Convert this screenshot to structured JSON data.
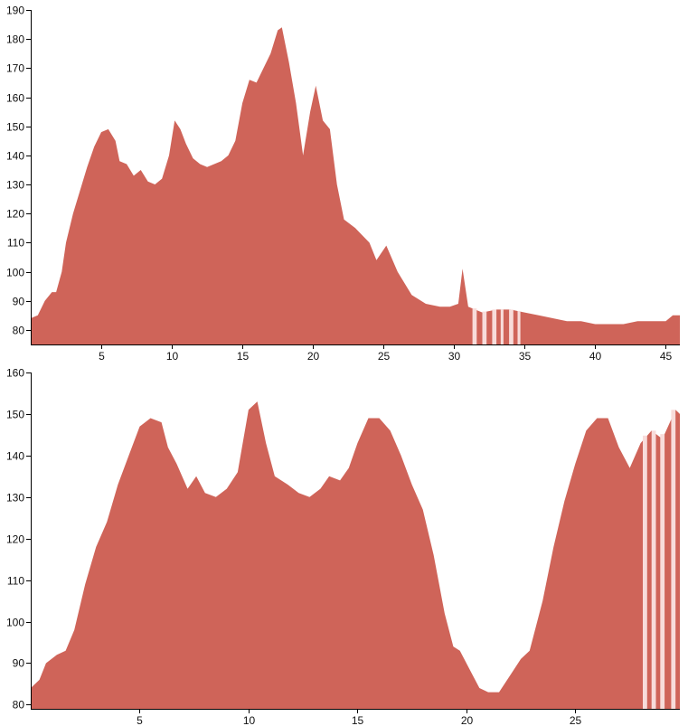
{
  "colors": {
    "area": "#cf6459",
    "gap_stripe": "#f8dcda",
    "axis": "#000000",
    "background": "#ffffff"
  },
  "chart_data": [
    {
      "type": "area",
      "xlim": [
        0,
        46
      ],
      "ylim": [
        75,
        190
      ],
      "x_ticks": [
        5,
        10,
        15,
        20,
        25,
        30,
        35,
        40,
        45
      ],
      "y_ticks": [
        80,
        90,
        100,
        110,
        120,
        130,
        140,
        150,
        160,
        170,
        180,
        190
      ],
      "grid": false,
      "legend": "none",
      "series": [
        {
          "points": [
            [
              0,
              84
            ],
            [
              0.5,
              85
            ],
            [
              1,
              90
            ],
            [
              1.5,
              93
            ],
            [
              1.8,
              93
            ],
            [
              2.2,
              100
            ],
            [
              2.5,
              110
            ],
            [
              3,
              120
            ],
            [
              3.5,
              128
            ],
            [
              4,
              136
            ],
            [
              4.5,
              143
            ],
            [
              5,
              148
            ],
            [
              5.5,
              149
            ],
            [
              6,
              145
            ],
            [
              6.3,
              138
            ],
            [
              6.8,
              137
            ],
            [
              7.3,
              133
            ],
            [
              7.8,
              135
            ],
            [
              8.3,
              131
            ],
            [
              8.8,
              130
            ],
            [
              9.3,
              132
            ],
            [
              9.8,
              140
            ],
            [
              10.2,
              152
            ],
            [
              10.6,
              149
            ],
            [
              11,
              144
            ],
            [
              11.5,
              139
            ],
            [
              12,
              137
            ],
            [
              12.5,
              136
            ],
            [
              13,
              137
            ],
            [
              13.5,
              138
            ],
            [
              14,
              140
            ],
            [
              14.5,
              145
            ],
            [
              15,
              158
            ],
            [
              15.5,
              166
            ],
            [
              16,
              165
            ],
            [
              16.5,
              170
            ],
            [
              17,
              175
            ],
            [
              17.5,
              183
            ],
            [
              17.8,
              184
            ],
            [
              18.3,
              172
            ],
            [
              18.8,
              158
            ],
            [
              19.3,
              140
            ],
            [
              19.8,
              155
            ],
            [
              20.2,
              164
            ],
            [
              20.7,
              152
            ],
            [
              21.2,
              149
            ],
            [
              21.7,
              130
            ],
            [
              22.2,
              118
            ],
            [
              23,
              115
            ],
            [
              24,
              110
            ],
            [
              24.5,
              104
            ],
            [
              25.2,
              109
            ],
            [
              26,
              100
            ],
            [
              27,
              92
            ],
            [
              28,
              89
            ],
            [
              29,
              88
            ],
            [
              29.7,
              88
            ],
            [
              30.3,
              89
            ],
            [
              30.6,
              101
            ],
            [
              31,
              88
            ],
            [
              32,
              86
            ],
            [
              33,
              87
            ],
            [
              34,
              87
            ],
            [
              35,
              86
            ],
            [
              36,
              85
            ],
            [
              37,
              84
            ],
            [
              38,
              83
            ],
            [
              39,
              83
            ],
            [
              40,
              82
            ],
            [
              41,
              82
            ],
            [
              42,
              82
            ],
            [
              43,
              83
            ],
            [
              44,
              83
            ],
            [
              45,
              83
            ],
            [
              45.5,
              85
            ],
            [
              46,
              85
            ]
          ],
          "gaps": [
            [
              31.3,
              31.6
            ],
            [
              32.0,
              32.3
            ],
            [
              32.7,
              33.0
            ],
            [
              33.3,
              33.5
            ],
            [
              33.9,
              34.2
            ],
            [
              34.5,
              34.7
            ]
          ]
        }
      ]
    },
    {
      "type": "area",
      "xlim": [
        0,
        29.8
      ],
      "ylim": [
        79,
        160
      ],
      "x_ticks": [
        5,
        10,
        15,
        20,
        25
      ],
      "y_ticks": [
        80,
        90,
        100,
        110,
        120,
        130,
        140,
        150,
        160
      ],
      "grid": false,
      "legend": "none",
      "series": [
        {
          "points": [
            [
              0,
              84
            ],
            [
              0.4,
              86
            ],
            [
              0.7,
              90
            ],
            [
              1.2,
              92
            ],
            [
              1.6,
              93
            ],
            [
              2.0,
              98
            ],
            [
              2.5,
              109
            ],
            [
              3,
              118
            ],
            [
              3.5,
              124
            ],
            [
              4,
              133
            ],
            [
              4.5,
              140
            ],
            [
              5,
              147
            ],
            [
              5.5,
              149
            ],
            [
              6,
              148
            ],
            [
              6.3,
              142
            ],
            [
              6.7,
              138
            ],
            [
              7.2,
              132
            ],
            [
              7.6,
              135
            ],
            [
              8,
              131
            ],
            [
              8.5,
              130
            ],
            [
              9,
              132
            ],
            [
              9.5,
              136
            ],
            [
              10,
              151
            ],
            [
              10.4,
              153
            ],
            [
              10.8,
              143
            ],
            [
              11.2,
              135
            ],
            [
              11.8,
              133
            ],
            [
              12.3,
              131
            ],
            [
              12.8,
              130
            ],
            [
              13.3,
              132
            ],
            [
              13.7,
              135
            ],
            [
              14.2,
              134
            ],
            [
              14.6,
              137
            ],
            [
              15,
              143
            ],
            [
              15.5,
              149
            ],
            [
              16,
              149
            ],
            [
              16.5,
              146
            ],
            [
              17,
              140
            ],
            [
              17.5,
              133
            ],
            [
              18,
              127
            ],
            [
              18.5,
              116
            ],
            [
              19,
              102
            ],
            [
              19.4,
              94
            ],
            [
              19.7,
              93
            ],
            [
              20.2,
              88
            ],
            [
              20.6,
              84
            ],
            [
              21,
              83
            ],
            [
              21.5,
              83
            ],
            [
              22,
              87
            ],
            [
              22.5,
              91
            ],
            [
              22.9,
              93
            ],
            [
              23.5,
              105
            ],
            [
              24,
              118
            ],
            [
              24.5,
              129
            ],
            [
              25,
              138
            ],
            [
              25.5,
              146
            ],
            [
              26,
              149
            ],
            [
              26.5,
              149
            ],
            [
              27,
              142
            ],
            [
              27.5,
              137
            ],
            [
              28,
              143
            ],
            [
              28.5,
              146
            ],
            [
              29,
              144
            ],
            [
              29.6,
              151
            ],
            [
              29.8,
              150
            ]
          ],
          "gaps": [
            [
              28.1,
              28.3
            ],
            [
              28.5,
              28.7
            ],
            [
              28.9,
              29.1
            ],
            [
              29.4,
              29.6
            ]
          ]
        }
      ]
    }
  ]
}
